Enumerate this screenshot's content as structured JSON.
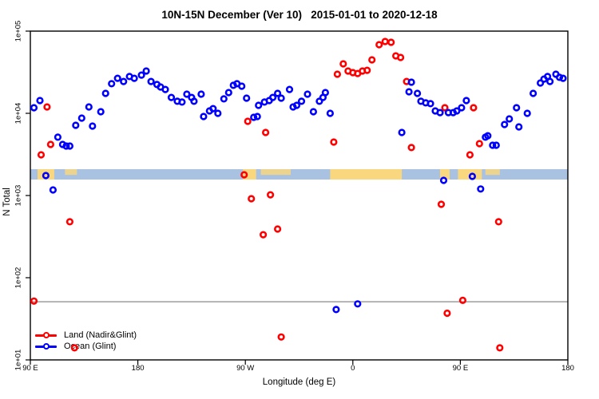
{
  "title": "10N-15N December (Ver 10)   2015-01-01 to 2020-12-18",
  "xlabel": "Longitude (deg E)",
  "ylabel": "N Total",
  "legend": [
    {
      "label": "Land (Nadir&Glint)",
      "color": "#ff0000"
    },
    {
      "label": "Ocean (Glint)",
      "color": "#0000ff"
    }
  ],
  "chart_data": {
    "type": "scatter",
    "title": "10N-15N December (Ver 10)   2015-01-01 to 2020-12-18",
    "xlabel": "Longitude (deg E)",
    "ylabel": "N Total",
    "x_axis": {
      "range": [
        90,
        540
      ],
      "note": "longitude axis runs eastward from 90E through 180, 90W, 0, 90E to 180 (wraps)",
      "ticks": [
        {
          "pos": 90,
          "label": "90 E"
        },
        {
          "pos": 180,
          "label": "180"
        },
        {
          "pos": 270,
          "label": "90 W"
        },
        {
          "pos": 360,
          "label": "0"
        },
        {
          "pos": 450,
          "label": "90 E"
        },
        {
          "pos": 540,
          "label": "180"
        }
      ]
    },
    "y_axis": {
      "scale": "log",
      "range": [
        10,
        100000
      ],
      "ticks": [
        {
          "value": 10,
          "label": "1e+01"
        },
        {
          "value": 100,
          "label": "1e+02"
        },
        {
          "value": 1000,
          "label": "1e+03"
        },
        {
          "value": 10000,
          "label": "1e+04"
        },
        {
          "value": 100000,
          "label": "1e+05"
        }
      ]
    },
    "ref_line": {
      "value": 51,
      "color": "#888888"
    },
    "map_band": {
      "ocean_color": "#a9c2e2",
      "land_color": "#f9d77f",
      "patches": [
        {
          "from": 96,
          "to": 110,
          "solid": true
        },
        {
          "from": 119,
          "to": 129,
          "solid": false
        },
        {
          "from": 268,
          "to": 279,
          "solid": true
        },
        {
          "from": 283,
          "to": 308,
          "solid": false
        },
        {
          "from": 341,
          "to": 401,
          "solid": true
        },
        {
          "from": 433,
          "to": 441,
          "solid": true
        },
        {
          "from": 448,
          "to": 468,
          "solid": true
        },
        {
          "from": 471,
          "to": 483,
          "solid": false
        }
      ]
    },
    "series": [
      {
        "name": "Land (Nadir&Glint)",
        "color": "#ff0000",
        "points": [
          [
            93,
            52
          ],
          [
            99,
            3130
          ],
          [
            104,
            11960
          ],
          [
            107,
            4180
          ],
          [
            123,
            479
          ],
          [
            127,
            14
          ],
          [
            269,
            1790
          ],
          [
            272,
            8000
          ],
          [
            275,
            915
          ],
          [
            285,
            334
          ],
          [
            287,
            5850
          ],
          [
            291,
            1020
          ],
          [
            297,
            391
          ],
          [
            300,
            19
          ],
          [
            344,
            4470
          ],
          [
            347,
            29900
          ],
          [
            352,
            40000
          ],
          [
            356,
            32700
          ],
          [
            360,
            31300
          ],
          [
            364,
            30500
          ],
          [
            368,
            32700
          ],
          [
            372,
            33400
          ],
          [
            376,
            44700
          ],
          [
            382,
            68400
          ],
          [
            387,
            74800
          ],
          [
            392,
            73100
          ],
          [
            396,
            50000
          ],
          [
            400,
            47800
          ],
          [
            405,
            24400
          ],
          [
            409,
            3830
          ],
          [
            434,
            782
          ],
          [
            437,
            11700
          ],
          [
            439,
            37
          ],
          [
            452,
            53
          ],
          [
            458,
            3130
          ],
          [
            461,
            11700
          ],
          [
            466,
            4280
          ],
          [
            482,
            479
          ],
          [
            483,
            14
          ]
        ]
      },
      {
        "name": "Ocean (Glint)",
        "color": "#0000ff",
        "points": [
          [
            93,
            11700
          ],
          [
            98,
            14300
          ],
          [
            103,
            1750
          ],
          [
            109,
            1170
          ],
          [
            113,
            5120
          ],
          [
            117,
            4180
          ],
          [
            120,
            4000
          ],
          [
            123,
            4000
          ],
          [
            128,
            7150
          ],
          [
            133,
            8740
          ],
          [
            139,
            11960
          ],
          [
            142,
            6990
          ],
          [
            149,
            10450
          ],
          [
            153,
            17500
          ],
          [
            158,
            22900
          ],
          [
            163,
            26700
          ],
          [
            168,
            24400
          ],
          [
            173,
            28000
          ],
          [
            177,
            26700
          ],
          [
            183,
            29200
          ],
          [
            187,
            32700
          ],
          [
            191,
            24400
          ],
          [
            196,
            22400
          ],
          [
            199,
            20900
          ],
          [
            203,
            19500
          ],
          [
            208,
            15600
          ],
          [
            213,
            14000
          ],
          [
            217,
            13700
          ],
          [
            221,
            17100
          ],
          [
            225,
            15600
          ],
          [
            227,
            14000
          ],
          [
            233,
            17100
          ],
          [
            235,
            9150
          ],
          [
            240,
            10700
          ],
          [
            243,
            11400
          ],
          [
            247,
            10000
          ],
          [
            252,
            15000
          ],
          [
            256,
            17900
          ],
          [
            260,
            21900
          ],
          [
            263,
            22900
          ],
          [
            267,
            21400
          ],
          [
            271,
            15300
          ],
          [
            277,
            8940
          ],
          [
            280,
            9150
          ],
          [
            281,
            12500
          ],
          [
            286,
            13700
          ],
          [
            290,
            14300
          ],
          [
            293,
            15600
          ],
          [
            297,
            17500
          ],
          [
            300,
            15300
          ],
          [
            307,
            19500
          ],
          [
            310,
            11960
          ],
          [
            313,
            12500
          ],
          [
            317,
            14000
          ],
          [
            322,
            17100
          ],
          [
            327,
            10450
          ],
          [
            332,
            14000
          ],
          [
            335,
            15600
          ],
          [
            337,
            17900
          ],
          [
            341,
            10000
          ],
          [
            346,
            41
          ],
          [
            364,
            48
          ],
          [
            401,
            5850
          ],
          [
            407,
            18300
          ],
          [
            409,
            23900
          ],
          [
            414,
            17500
          ],
          [
            417,
            14000
          ],
          [
            421,
            13400
          ],
          [
            425,
            13100
          ],
          [
            429,
            10700
          ],
          [
            433,
            10200
          ],
          [
            436,
            1530
          ],
          [
            440,
            10200
          ],
          [
            444,
            10200
          ],
          [
            447,
            10700
          ],
          [
            451,
            11700
          ],
          [
            455,
            14300
          ],
          [
            460,
            1710
          ],
          [
            467,
            1200
          ],
          [
            471,
            5120
          ],
          [
            473,
            5340
          ],
          [
            477,
            4090
          ],
          [
            480,
            4090
          ],
          [
            487,
            7310
          ],
          [
            491,
            8550
          ],
          [
            497,
            11700
          ],
          [
            499,
            6840
          ],
          [
            506,
            10000
          ],
          [
            511,
            17500
          ],
          [
            517,
            23400
          ],
          [
            520,
            26100
          ],
          [
            523,
            28000
          ],
          [
            525,
            24400
          ],
          [
            530,
            29900
          ],
          [
            533,
            27400
          ],
          [
            536,
            26700
          ]
        ]
      }
    ]
  }
}
